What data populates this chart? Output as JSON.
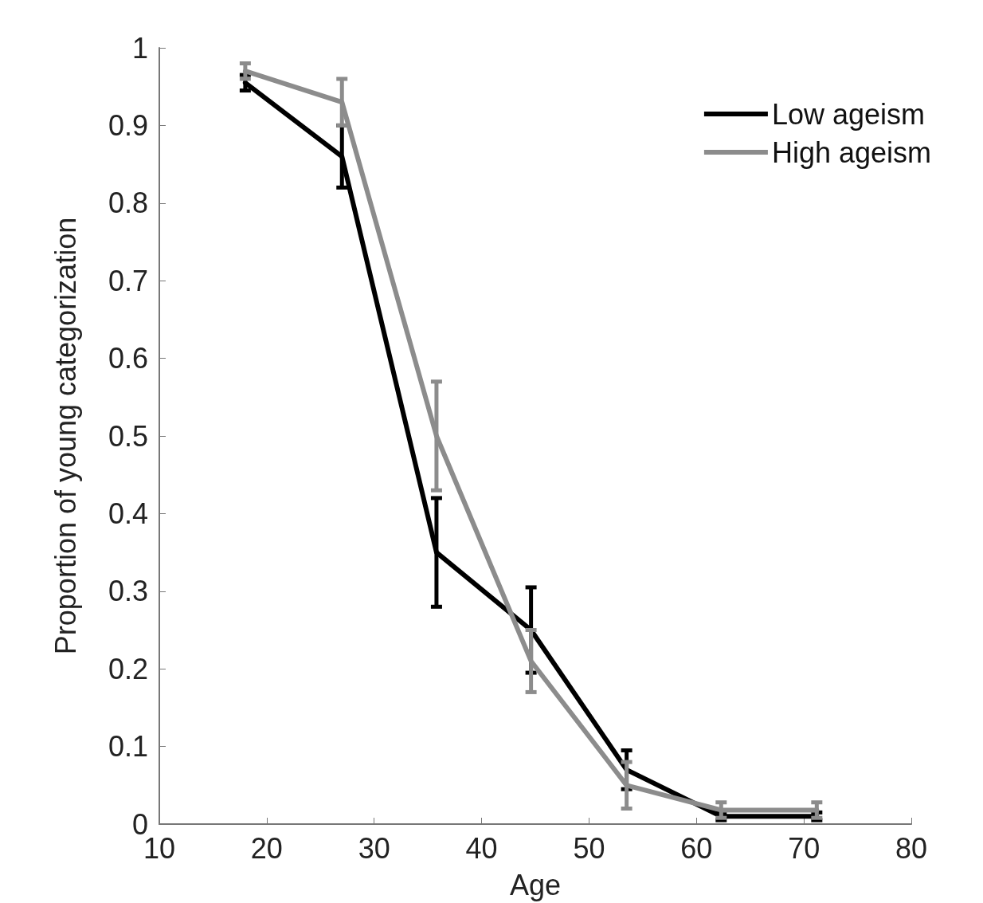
{
  "chart_data": {
    "type": "line",
    "xlabel": "Age",
    "ylabel": "Proportion of young categorization",
    "x": [
      18,
      27,
      35.8,
      44.6,
      53.5,
      62.3,
      71.2
    ],
    "series": [
      {
        "name": "Low ageism",
        "color": "#000000",
        "values": [
          0.955,
          0.86,
          0.35,
          0.25,
          0.07,
          0.01,
          0.01
        ],
        "errors": [
          0.01,
          0.04,
          0.07,
          0.055,
          0.025,
          0.005,
          0.005
        ]
      },
      {
        "name": "High ageism",
        "color": "#8c8c8c",
        "values": [
          0.97,
          0.93,
          0.5,
          0.21,
          0.05,
          0.018,
          0.018
        ],
        "errors": [
          0.01,
          0.03,
          0.07,
          0.04,
          0.03,
          0.01,
          0.01
        ]
      }
    ],
    "xlim": [
      10,
      80
    ],
    "xticks": [
      10,
      20,
      30,
      40,
      50,
      60,
      70,
      80
    ],
    "ylim": [
      0,
      1
    ],
    "yticks": [
      0,
      0.1,
      0.2,
      0.3,
      0.4,
      0.5,
      0.6,
      0.7,
      0.8,
      0.9,
      1
    ],
    "grid": false,
    "legend": "top right",
    "marker": "none",
    "line_style": "solid"
  }
}
